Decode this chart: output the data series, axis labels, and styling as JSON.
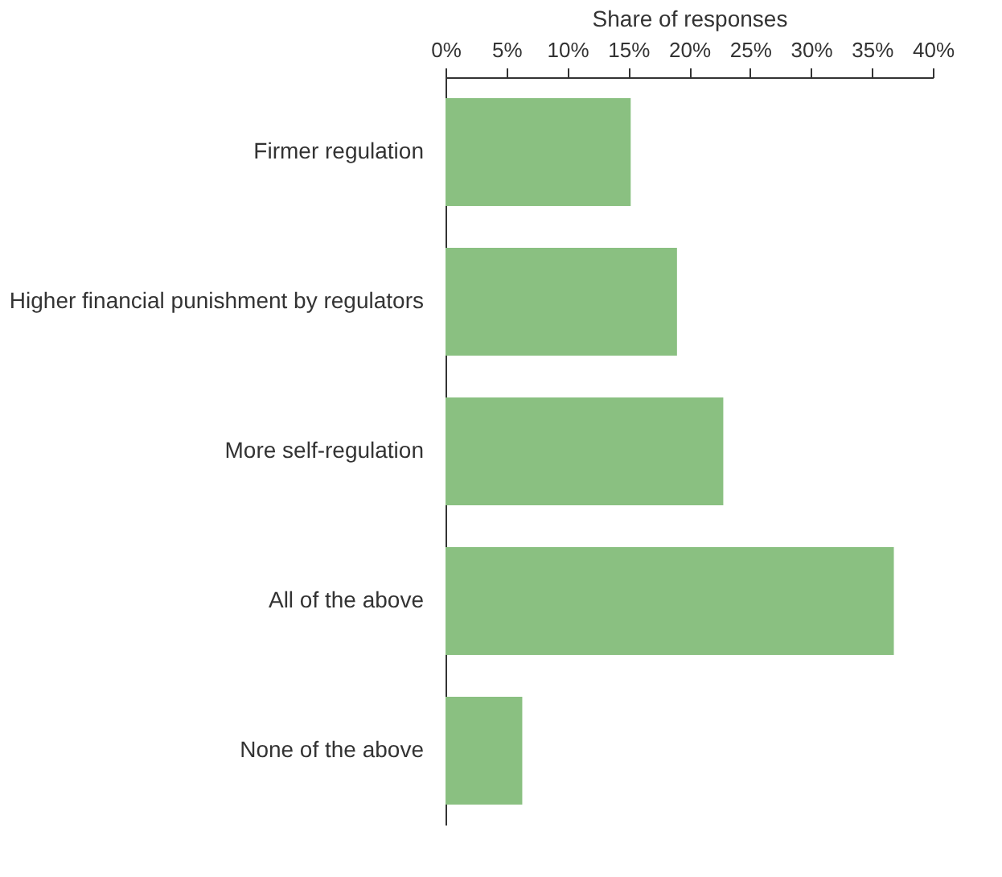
{
  "chart_data": {
    "type": "bar",
    "orientation": "horizontal",
    "xlabel": "Share of responses",
    "categories": [
      "Firmer regulation",
      "Higher financial punishment by regulators",
      "More self-regulation",
      "All of the above",
      "None of the above"
    ],
    "values": [
      15.2,
      19.0,
      22.8,
      36.8,
      6.3
    ],
    "color": "#8ac081",
    "xlim": [
      0,
      40
    ],
    "xticks": [
      {
        "value": 0,
        "label": "0%"
      },
      {
        "value": 5,
        "label": "5%"
      },
      {
        "value": 10,
        "label": "10%"
      },
      {
        "value": 15,
        "label": "15%"
      },
      {
        "value": 20,
        "label": "20%"
      },
      {
        "value": 25,
        "label": "25%"
      },
      {
        "value": 30,
        "label": "30%"
      },
      {
        "value": 35,
        "label": "35%"
      },
      {
        "value": 40,
        "label": "40%"
      }
    ],
    "grid": false
  }
}
